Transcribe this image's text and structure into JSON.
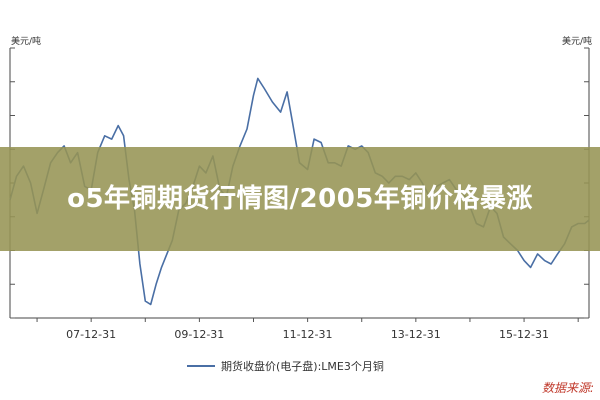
{
  "chart_data": {
    "type": "line",
    "y_unit_left": "美元/吨",
    "y_unit_right": "美元/吨",
    "x_tick_labels": [
      "07-12-31",
      "09-12-31",
      "11-12-31",
      "13-12-31",
      "15-12-31"
    ],
    "x_tick_years": [
      2007.999,
      2009.999,
      2011.999,
      2013.999,
      2015.999
    ],
    "xlim": [
      2006.5,
      2017.2
    ],
    "ylim": [
      3000,
      11000
    ],
    "y_tick_values": [
      3000,
      4000,
      5000,
      6000,
      7000,
      8000,
      9000,
      10000,
      11000
    ],
    "grid": false,
    "legend_position": "bottom-center",
    "series": [
      {
        "name": "期货收盘价(电子盘):LME3个月铜",
        "color": "#4a6fa5",
        "x": [
          2006.5,
          2006.62,
          2006.75,
          2006.88,
          2007.0,
          2007.12,
          2007.25,
          2007.38,
          2007.5,
          2007.62,
          2007.75,
          2007.88,
          2008.0,
          2008.12,
          2008.25,
          2008.38,
          2008.5,
          2008.6,
          2008.7,
          2008.8,
          2008.9,
          2009.0,
          2009.1,
          2009.2,
          2009.3,
          2009.4,
          2009.5,
          2009.62,
          2009.75,
          2009.88,
          2010.0,
          2010.12,
          2010.25,
          2010.38,
          2010.5,
          2010.62,
          2010.75,
          2010.88,
          2011.0,
          2011.08,
          2011.2,
          2011.35,
          2011.5,
          2011.62,
          2011.72,
          2011.85,
          2012.0,
          2012.12,
          2012.25,
          2012.38,
          2012.5,
          2012.62,
          2012.75,
          2012.88,
          2013.0,
          2013.12,
          2013.25,
          2013.38,
          2013.5,
          2013.62,
          2013.75,
          2013.88,
          2014.0,
          2014.12,
          2014.25,
          2014.38,
          2014.5,
          2014.62,
          2014.75,
          2014.88,
          2015.0,
          2015.12,
          2015.25,
          2015.38,
          2015.5,
          2015.62,
          2015.75,
          2015.88,
          2016.0,
          2016.12,
          2016.25,
          2016.38,
          2016.5,
          2016.62,
          2016.75,
          2016.88,
          2017.0,
          2017.12,
          2017.2
        ],
        "y": [
          6500,
          7200,
          7500,
          7000,
          6100,
          6800,
          7600,
          7900,
          8100,
          7600,
          7900,
          6900,
          6800,
          7900,
          8400,
          8300,
          8700,
          8400,
          7100,
          6200,
          4600,
          3500,
          3400,
          4000,
          4500,
          4900,
          5300,
          6200,
          6400,
          6900,
          7500,
          7300,
          7800,
          6800,
          6600,
          7500,
          8100,
          8600,
          9600,
          10100,
          9800,
          9400,
          9100,
          9700,
          8800,
          7600,
          7400,
          8300,
          8200,
          7600,
          7600,
          7500,
          8100,
          8000,
          8100,
          7900,
          7300,
          7200,
          7000,
          7200,
          7200,
          7100,
          7300,
          7000,
          6600,
          6900,
          7000,
          7100,
          6800,
          6700,
          6300,
          5800,
          5700,
          6300,
          6100,
          5400,
          5200,
          5000,
          4700,
          4500,
          4900,
          4700,
          4600,
          4900,
          5200,
          5700,
          5800,
          5800,
          5900
        ]
      }
    ]
  },
  "overlay": {
    "title": "o5年铜期货行情图/2005年铜价格暴涨"
  },
  "source_label": "数据来源:"
}
